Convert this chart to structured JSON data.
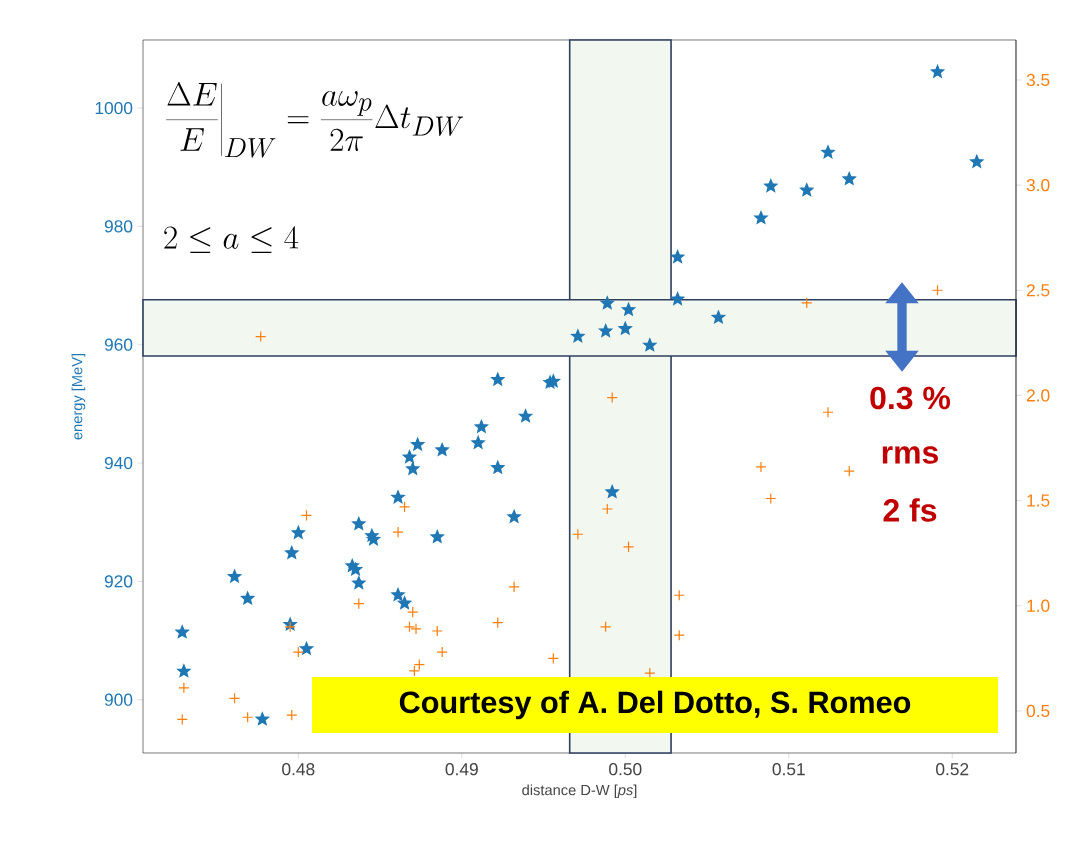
{
  "chart_data": {
    "type": "scatter",
    "xlabel": "distance D-W [*ps*]",
    "ylabel": "energy [MeV]",
    "xlim": [
      0.4705,
      0.5239
    ],
    "ylim": [
      891,
      1011.5
    ],
    "y2lim": [
      0.3,
      3.69
    ],
    "xticks": [
      0.48,
      0.49,
      {
        "value": 0.5,
        "label": "0.50"
      },
      0.51,
      0.52
    ],
    "yticks": [
      900,
      920,
      940,
      960,
      980,
      1000
    ],
    "y2ticks": [
      0.5,
      {
        "value": 1,
        "label": "1.0"
      },
      1.5,
      {
        "value": 2,
        "label": "2.0"
      },
      2.5,
      {
        "value": 3,
        "label": "3.0"
      },
      3.5
    ],
    "series": [
      {
        "color": "#1f77b4",
        "marker": "star",
        "x": [
          0.4729,
          0.473,
          0.4761,
          0.4769,
          0.4778,
          0.4795,
          0.4796,
          0.48,
          0.4805,
          0.4833,
          0.4835,
          0.4837,
          0.4837,
          0.4845,
          0.4846,
          0.4861,
          0.4861,
          0.4865,
          0.4885,
          0.4873,
          0.4868,
          0.487,
          0.4888,
          0.4922,
          0.4954,
          0.4956,
          0.4939,
          0.4912,
          0.491,
          0.4922,
          0.4932,
          0.4992,
          0.5032,
          0.5032,
          0.4989,
          0.5002,
          0.5057,
          0.4971,
          0.4988,
          0.5,
          0.5015,
          0.5191,
          0.5215,
          0.5124,
          0.5137,
          0.5089,
          0.5111,
          0.5083
        ],
        "values": [
          911.4,
          904.8,
          920.8,
          917.1,
          896.7,
          912.7,
          924.8,
          928.2,
          908.6,
          922.6,
          922.0,
          919.7,
          929.7,
          927.7,
          927.1,
          934.2,
          917.7,
          916.3,
          927.5,
          943.1,
          941.0,
          939.0,
          942.2,
          954.1,
          953.6,
          953.8,
          947.9,
          946.1,
          943.4,
          939.2,
          930.9,
          935.1,
          974.8,
          967.7,
          967.0,
          965.9,
          964.6,
          961.4,
          962.3,
          962.7,
          959.9,
          1006.1,
          990.9,
          992.5,
          988.0,
          986.8,
          986.1,
          981.4
        ]
      },
      {
        "color": "#ff7f0e",
        "marker": "cross",
        "axis": "y2",
        "x": [
          0.473,
          0.4729,
          0.4761,
          0.4769,
          0.4796,
          0.4805,
          0.4795,
          0.48,
          0.4865,
          0.4861,
          0.4837,
          0.487,
          0.4868,
          0.4872,
          0.4885,
          0.4888,
          0.4874,
          0.4871,
          0.4992,
          0.4989,
          0.4971,
          0.5002,
          0.4932,
          0.4922,
          0.4956,
          0.4988,
          0.5033,
          0.5033,
          0.5015,
          0.4777,
          0.5191,
          0.5111,
          0.5124,
          0.5083,
          0.5089,
          0.5137
        ],
        "values": [
          0.61,
          0.46,
          0.56,
          0.47,
          0.48,
          1.43,
          0.9,
          0.78,
          1.47,
          1.35,
          1.01,
          0.97,
          0.9,
          0.89,
          0.88,
          0.78,
          0.72,
          0.69,
          1.99,
          1.46,
          1.34,
          1.28,
          1.09,
          0.92,
          0.75,
          0.9,
          1.05,
          0.86,
          0.68,
          2.28,
          2.5,
          2.44,
          1.92,
          1.66,
          1.51,
          1.64
        ]
      }
    ],
    "bands": [
      {
        "axis": "x",
        "from": 0.4966,
        "to": 0.5028,
        "color": "#f2f7f0"
      },
      {
        "axis": "y",
        "from": 958.1,
        "to": 967.6,
        "color": "#f2f7f0"
      }
    ],
    "annotations": [
      "\\left.\\frac{\\Delta E}{E}\\right|_{DW} = \\frac{a\\omega_p}{2\\pi}\\Delta t_{DW}",
      "2 \\le a \\le 4",
      "0.3 %",
      "rms",
      "2 fs",
      "Courtesy of A. Del Dotto, S. Romeo"
    ]
  }
}
